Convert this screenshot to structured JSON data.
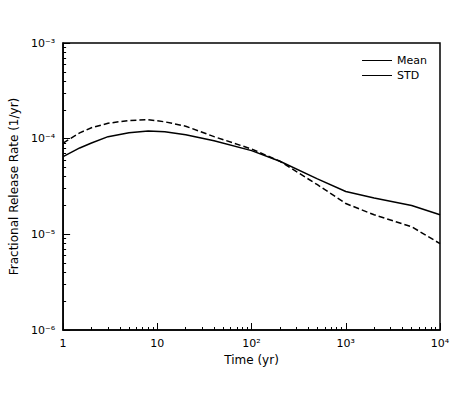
{
  "chart_data": {
    "type": "line",
    "x_label": "Time (yr)",
    "y_label": "Fractional Release Rate (1/yr)",
    "log": true,
    "grid": false,
    "legend": "top-right",
    "xlim": [
      1,
      10000
    ],
    "xticks": [
      1,
      10,
      {
        "value": 100,
        "label": "10²"
      },
      {
        "value": 1000,
        "label": "10³"
      },
      {
        "value": 10000,
        "label": "10⁴"
      }
    ],
    "ylim": [
      1e-06,
      0.001
    ],
    "yticks": [
      {
        "value": 1e-06,
        "label": "10⁻⁶"
      },
      {
        "value": 1e-05,
        "label": "10⁻⁵"
      },
      {
        "value": 0.0001,
        "label": "10⁻⁴"
      },
      {
        "value": 0.001,
        "label": "10⁻³"
      }
    ],
    "x": [
      1,
      1.5,
      2,
      3,
      5,
      8,
      12,
      20,
      40,
      100,
      200,
      500,
      1000,
      2000,
      5000,
      10000
    ],
    "series": [
      {
        "name": "Mean",
        "color": "#000000",
        "line_style": "solid",
        "values": [
          6.5e-05,
          8e-05,
          9e-05,
          0.000105,
          0.000115,
          0.00012,
          0.000118,
          0.00011,
          9.5e-05,
          7.5e-05,
          5.8e-05,
          3.8e-05,
          2.8e-05,
          2.4e-05,
          2e-05,
          1.6e-05
        ]
      },
      {
        "name": "STD",
        "color": "#000000",
        "line_style": "dashed",
        "values": [
          9e-05,
          0.000115,
          0.00013,
          0.000145,
          0.000155,
          0.000158,
          0.00015,
          0.000135,
          0.000105,
          7.8e-05,
          5.8e-05,
          3.3e-05,
          2.1e-05,
          1.6e-05,
          1.2e-05,
          8e-06
        ]
      }
    ]
  }
}
